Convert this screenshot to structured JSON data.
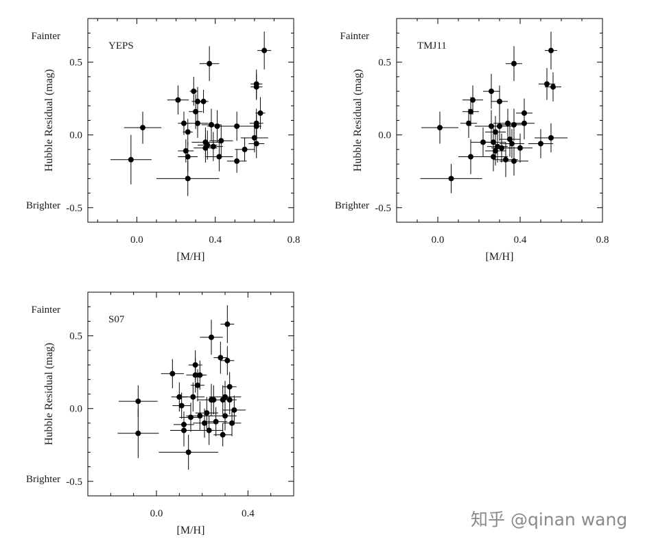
{
  "watermark": "知乎 @qinan wang",
  "chart_data": [
    {
      "type": "scatter",
      "title": "YEPS",
      "xlabel": "[M/H]",
      "ylabel": "Hubble Residual (mag)",
      "xlim": [
        -0.25,
        0.8
      ],
      "ylim": [
        -0.6,
        0.8
      ],
      "xticks": [
        0.0,
        0.4,
        0.8
      ],
      "xtick_labels": [
        "0.0",
        "0.4",
        "0.8"
      ],
      "yticks": [
        0.5,
        0.0,
        -0.5
      ],
      "ytick_labels": [
        "0.5",
        "0.0",
        "-0.5"
      ],
      "annotations": {
        "top": "Fainter",
        "bottom": "Brighter"
      },
      "points": [
        {
          "x": -0.03,
          "y": -0.17,
          "xerr": 0.105,
          "yerr": 0.17
        },
        {
          "x": 0.03,
          "y": 0.05,
          "xerr": 0.095,
          "yerr": 0.11
        },
        {
          "x": 0.21,
          "y": 0.24,
          "xerr": 0.055,
          "yerr": 0.1
        },
        {
          "x": 0.24,
          "y": 0.08,
          "xerr": 0.03,
          "yerr": 0.08
        },
        {
          "x": 0.25,
          "y": -0.11,
          "xerr": 0.04,
          "yerr": 0.08
        },
        {
          "x": 0.26,
          "y": 0.02,
          "xerr": 0.025,
          "yerr": 0.09
        },
        {
          "x": 0.26,
          "y": -0.15,
          "xerr": 0.05,
          "yerr": 0.1
        },
        {
          "x": 0.26,
          "y": -0.3,
          "xerr": 0.16,
          "yerr": 0.12
        },
        {
          "x": 0.29,
          "y": 0.3,
          "xerr": 0.02,
          "yerr": 0.1
        },
        {
          "x": 0.3,
          "y": 0.16,
          "xerr": 0.035,
          "yerr": 0.12
        },
        {
          "x": 0.31,
          "y": 0.23,
          "xerr": 0.03,
          "yerr": 0.1
        },
        {
          "x": 0.31,
          "y": 0.08,
          "xerr": 0.055,
          "yerr": 0.1
        },
        {
          "x": 0.34,
          "y": 0.23,
          "xerr": 0.025,
          "yerr": 0.08
        },
        {
          "x": 0.35,
          "y": -0.05,
          "xerr": 0.07,
          "yerr": 0.1
        },
        {
          "x": 0.35,
          "y": -0.09,
          "xerr": 0.06,
          "yerr": 0.1
        },
        {
          "x": 0.36,
          "y": -0.07,
          "xerr": 0.05,
          "yerr": 0.1
        },
        {
          "x": 0.37,
          "y": 0.49,
          "xerr": 0.05,
          "yerr": 0.12
        },
        {
          "x": 0.38,
          "y": 0.07,
          "xerr": 0.05,
          "yerr": 0.11
        },
        {
          "x": 0.39,
          "y": -0.08,
          "xerr": 0.05,
          "yerr": 0.1
        },
        {
          "x": 0.41,
          "y": 0.06,
          "xerr": 0.05,
          "yerr": 0.11
        },
        {
          "x": 0.42,
          "y": -0.15,
          "xerr": 0.07,
          "yerr": 0.1
        },
        {
          "x": 0.43,
          "y": -0.04,
          "xerr": 0.06,
          "yerr": 0.11
        },
        {
          "x": 0.51,
          "y": 0.06,
          "xerr": 0.08,
          "yerr": 0.1
        },
        {
          "x": 0.51,
          "y": -0.18,
          "xerr": 0.05,
          "yerr": 0.08
        },
        {
          "x": 0.55,
          "y": -0.1,
          "xerr": 0.05,
          "yerr": 0.08
        },
        {
          "x": 0.6,
          "y": -0.02,
          "xerr": 0.07,
          "yerr": 0.1
        },
        {
          "x": 0.61,
          "y": 0.35,
          "xerr": 0.03,
          "yerr": 0.1
        },
        {
          "x": 0.61,
          "y": 0.33,
          "xerr": 0.03,
          "yerr": 0.09
        },
        {
          "x": 0.61,
          "y": 0.08,
          "xerr": 0.035,
          "yerr": 0.1
        },
        {
          "x": 0.61,
          "y": 0.06,
          "xerr": 0.025,
          "yerr": 0.08
        },
        {
          "x": 0.61,
          "y": -0.06,
          "xerr": 0.04,
          "yerr": 0.1
        },
        {
          "x": 0.63,
          "y": 0.15,
          "xerr": 0.025,
          "yerr": 0.11
        },
        {
          "x": 0.65,
          "y": 0.58,
          "xerr": 0.035,
          "yerr": 0.13
        }
      ]
    },
    {
      "type": "scatter",
      "title": "TMJ11",
      "xlabel": "[M/H]",
      "ylabel": "Hubble Residual (mag)",
      "xlim": [
        -0.2,
        0.8
      ],
      "ylim": [
        -0.6,
        0.8
      ],
      "xticks": [
        0.0,
        0.4,
        0.8
      ],
      "xtick_labels": [
        "0.0",
        "0.4",
        "0.8"
      ],
      "yticks": [
        0.5,
        0.0,
        -0.5
      ],
      "ytick_labels": [
        "0.5",
        "0.0",
        "-0.5"
      ],
      "annotations": {
        "top": "Fainter",
        "bottom": "Brighter"
      },
      "points": [
        {
          "x": 0.01,
          "y": 0.05,
          "xerr": 0.09,
          "yerr": 0.11
        },
        {
          "x": 0.065,
          "y": -0.3,
          "xerr": 0.15,
          "yerr": 0.1
        },
        {
          "x": 0.15,
          "y": 0.08,
          "xerr": 0.04,
          "yerr": 0.1
        },
        {
          "x": 0.16,
          "y": -0.15,
          "xerr": 0.06,
          "yerr": 0.12
        },
        {
          "x": 0.16,
          "y": 0.16,
          "xerr": 0.04,
          "yerr": 0.1
        },
        {
          "x": 0.17,
          "y": 0.24,
          "xerr": 0.05,
          "yerr": 0.1
        },
        {
          "x": 0.22,
          "y": -0.05,
          "xerr": 0.06,
          "yerr": 0.1
        },
        {
          "x": 0.26,
          "y": 0.3,
          "xerr": 0.04,
          "yerr": 0.12
        },
        {
          "x": 0.26,
          "y": 0.06,
          "xerr": 0.08,
          "yerr": 0.11
        },
        {
          "x": 0.27,
          "y": -0.05,
          "xerr": 0.06,
          "yerr": 0.1
        },
        {
          "x": 0.27,
          "y": -0.15,
          "xerr": 0.07,
          "yerr": 0.1
        },
        {
          "x": 0.28,
          "y": 0.02,
          "xerr": 0.05,
          "yerr": 0.11
        },
        {
          "x": 0.28,
          "y": -0.11,
          "xerr": 0.05,
          "yerr": 0.1
        },
        {
          "x": 0.29,
          "y": -0.08,
          "xerr": 0.05,
          "yerr": 0.11
        },
        {
          "x": 0.3,
          "y": 0.06,
          "xerr": 0.06,
          "yerr": 0.1
        },
        {
          "x": 0.3,
          "y": 0.23,
          "xerr": 0.04,
          "yerr": 0.11
        },
        {
          "x": 0.31,
          "y": -0.09,
          "xerr": 0.05,
          "yerr": 0.1
        },
        {
          "x": 0.33,
          "y": -0.17,
          "xerr": 0.06,
          "yerr": 0.12
        },
        {
          "x": 0.34,
          "y": 0.08,
          "xerr": 0.07,
          "yerr": 0.1
        },
        {
          "x": 0.35,
          "y": -0.03,
          "xerr": 0.05,
          "yerr": 0.12
        },
        {
          "x": 0.36,
          "y": -0.06,
          "xerr": 0.06,
          "yerr": 0.1
        },
        {
          "x": 0.37,
          "y": 0.49,
          "xerr": 0.04,
          "yerr": 0.12
        },
        {
          "x": 0.37,
          "y": -0.18,
          "xerr": 0.07,
          "yerr": 0.1
        },
        {
          "x": 0.37,
          "y": 0.07,
          "xerr": 0.06,
          "yerr": 0.11
        },
        {
          "x": 0.4,
          "y": -0.09,
          "xerr": 0.06,
          "yerr": 0.1
        },
        {
          "x": 0.42,
          "y": 0.08,
          "xerr": 0.05,
          "yerr": 0.11
        },
        {
          "x": 0.42,
          "y": 0.15,
          "xerr": 0.04,
          "yerr": 0.1
        },
        {
          "x": 0.5,
          "y": -0.06,
          "xerr": 0.06,
          "yerr": 0.1
        },
        {
          "x": 0.53,
          "y": 0.35,
          "xerr": 0.04,
          "yerr": 0.11
        },
        {
          "x": 0.55,
          "y": 0.58,
          "xerr": 0.03,
          "yerr": 0.13
        },
        {
          "x": 0.55,
          "y": -0.02,
          "xerr": 0.08,
          "yerr": 0.1
        },
        {
          "x": 0.56,
          "y": 0.33,
          "xerr": 0.04,
          "yerr": 0.1
        }
      ]
    },
    {
      "type": "scatter",
      "title": "S07",
      "xlabel": "[M/H]",
      "ylabel": "Hubble Residual (mag)",
      "xlim": [
        -0.3,
        0.6
      ],
      "ylim": [
        -0.6,
        0.8
      ],
      "xticks": [
        0.0,
        0.4
      ],
      "xtick_labels": [
        "0.0",
        "0.4"
      ],
      "yticks": [
        0.5,
        0.0,
        -0.5
      ],
      "ytick_labels": [
        "0.5",
        "0.0",
        "-0.5"
      ],
      "annotations": {
        "top": "Fainter",
        "bottom": "Brighter"
      },
      "points": [
        {
          "x": -0.08,
          "y": 0.05,
          "xerr": 0.085,
          "yerr": 0.11
        },
        {
          "x": -0.08,
          "y": -0.17,
          "xerr": 0.09,
          "yerr": 0.17
        },
        {
          "x": 0.07,
          "y": 0.24,
          "xerr": 0.05,
          "yerr": 0.1
        },
        {
          "x": 0.1,
          "y": 0.08,
          "xerr": 0.035,
          "yerr": 0.1
        },
        {
          "x": 0.11,
          "y": 0.02,
          "xerr": 0.04,
          "yerr": 0.09
        },
        {
          "x": 0.12,
          "y": -0.11,
          "xerr": 0.045,
          "yerr": 0.09
        },
        {
          "x": 0.12,
          "y": -0.15,
          "xerr": 0.06,
          "yerr": 0.11
        },
        {
          "x": 0.14,
          "y": -0.3,
          "xerr": 0.13,
          "yerr": 0.12
        },
        {
          "x": 0.15,
          "y": -0.06,
          "xerr": 0.05,
          "yerr": 0.1
        },
        {
          "x": 0.16,
          "y": 0.08,
          "xerr": 0.05,
          "yerr": 0.1
        },
        {
          "x": 0.17,
          "y": 0.3,
          "xerr": 0.03,
          "yerr": 0.1
        },
        {
          "x": 0.17,
          "y": 0.23,
          "xerr": 0.04,
          "yerr": 0.12
        },
        {
          "x": 0.18,
          "y": 0.16,
          "xerr": 0.03,
          "yerr": 0.11
        },
        {
          "x": 0.19,
          "y": 0.23,
          "xerr": 0.03,
          "yerr": 0.1
        },
        {
          "x": 0.19,
          "y": -0.05,
          "xerr": 0.06,
          "yerr": 0.1
        },
        {
          "x": 0.21,
          "y": -0.1,
          "xerr": 0.05,
          "yerr": 0.1
        },
        {
          "x": 0.22,
          "y": -0.03,
          "xerr": 0.05,
          "yerr": 0.11
        },
        {
          "x": 0.23,
          "y": -0.15,
          "xerr": 0.06,
          "yerr": 0.1
        },
        {
          "x": 0.24,
          "y": 0.49,
          "xerr": 0.05,
          "yerr": 0.12
        },
        {
          "x": 0.24,
          "y": 0.06,
          "xerr": 0.06,
          "yerr": 0.11
        },
        {
          "x": 0.25,
          "y": 0.06,
          "xerr": 0.05,
          "yerr": 0.1
        },
        {
          "x": 0.26,
          "y": -0.09,
          "xerr": 0.05,
          "yerr": 0.1
        },
        {
          "x": 0.28,
          "y": 0.35,
          "xerr": 0.03,
          "yerr": 0.11
        },
        {
          "x": 0.29,
          "y": 0.06,
          "xerr": 0.06,
          "yerr": 0.1
        },
        {
          "x": 0.29,
          "y": -0.18,
          "xerr": 0.04,
          "yerr": 0.08
        },
        {
          "x": 0.3,
          "y": 0.08,
          "xerr": 0.07,
          "yerr": 0.11
        },
        {
          "x": 0.3,
          "y": -0.05,
          "xerr": 0.05,
          "yerr": 0.1
        },
        {
          "x": 0.31,
          "y": 0.58,
          "xerr": 0.03,
          "yerr": 0.13
        },
        {
          "x": 0.31,
          "y": 0.33,
          "xerr": 0.03,
          "yerr": 0.1
        },
        {
          "x": 0.32,
          "y": 0.15,
          "xerr": 0.03,
          "yerr": 0.1
        },
        {
          "x": 0.32,
          "y": 0.06,
          "xerr": 0.03,
          "yerr": 0.1
        },
        {
          "x": 0.33,
          "y": -0.1,
          "xerr": 0.04,
          "yerr": 0.09
        },
        {
          "x": 0.34,
          "y": -0.01,
          "xerr": 0.05,
          "yerr": 0.1
        }
      ]
    }
  ]
}
